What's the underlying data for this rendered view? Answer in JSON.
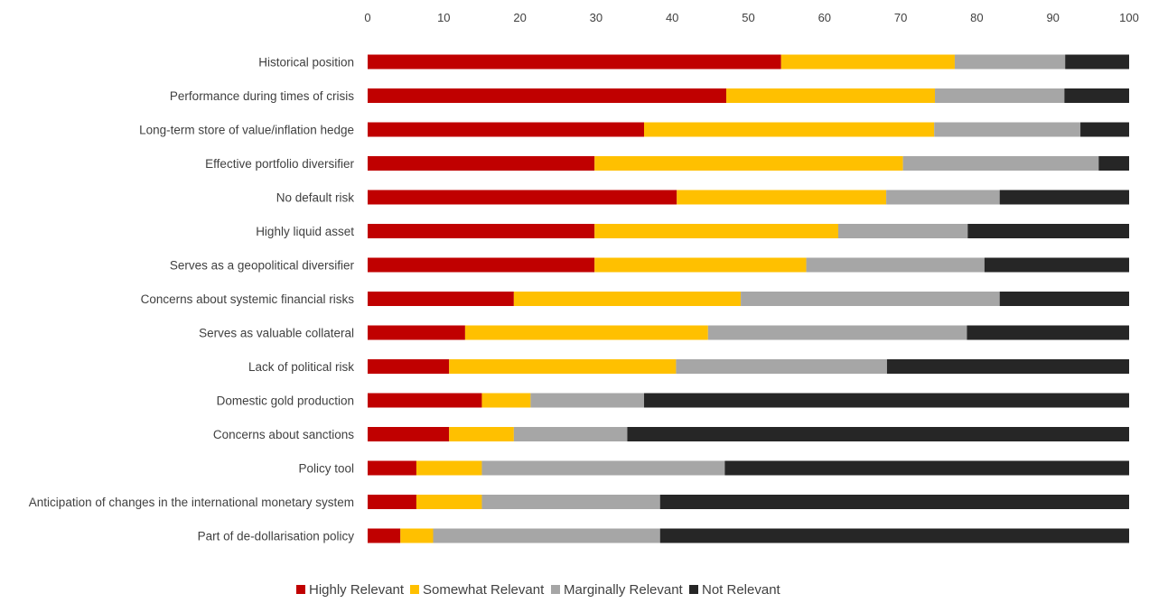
{
  "chart_data": {
    "type": "bar",
    "orientation": "horizontal",
    "stacked": true,
    "title": "",
    "xlabel": "",
    "ylabel": "",
    "xlim": [
      0,
      100
    ],
    "x_ticks": [
      0,
      10,
      20,
      30,
      40,
      50,
      60,
      70,
      80,
      90,
      100
    ],
    "x_axis_position": "top",
    "grid": false,
    "legend_position": "bottom",
    "categories": [
      "Historical position",
      "Performance during times of crisis",
      "Long-term store of value/inflation hedge",
      "Effective portfolio diversifier",
      "No default risk",
      "Highly liquid asset",
      "Serves as a geopolitical diversifier",
      "Concerns about systemic financial risks",
      "Serves as valuable collateral",
      "Lack of political risk",
      "Domestic gold production",
      "Concerns about sanctions",
      "Policy tool",
      "Anticipation of changes in the international monetary system",
      "Part of de-dollarisation policy"
    ],
    "series": [
      {
        "name": "Highly Relevant",
        "color": "#c00000",
        "values": [
          54.3,
          47.1,
          36.3,
          29.8,
          40.6,
          29.8,
          29.8,
          19.2,
          12.8,
          10.7,
          15.0,
          10.7,
          6.4,
          6.4,
          4.3
        ]
      },
      {
        "name": "Somewhat Relevant",
        "color": "#ffc000",
        "values": [
          22.8,
          27.4,
          38.1,
          40.5,
          27.5,
          32.0,
          27.8,
          29.8,
          31.9,
          29.8,
          6.4,
          8.5,
          8.6,
          8.6,
          4.3
        ]
      },
      {
        "name": "Marginally Relevant",
        "color": "#a6a6a6",
        "values": [
          14.5,
          17.0,
          19.2,
          25.7,
          14.9,
          17.0,
          23.4,
          34.0,
          34.0,
          27.7,
          14.9,
          14.9,
          31.9,
          23.4,
          29.8
        ]
      },
      {
        "name": "Not Relevant",
        "color": "#262626",
        "values": [
          8.4,
          8.5,
          6.4,
          4.0,
          17.0,
          21.2,
          19.0,
          17.0,
          21.3,
          31.8,
          63.7,
          65.9,
          53.1,
          61.6,
          61.6
        ]
      }
    ]
  }
}
